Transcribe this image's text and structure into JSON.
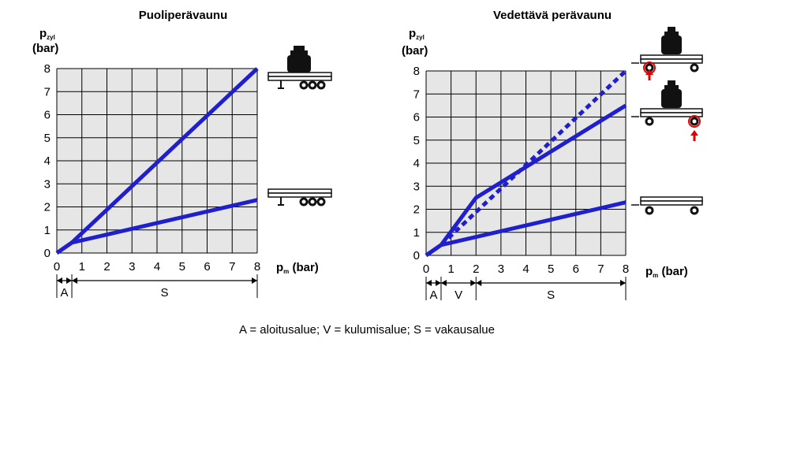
{
  "chart_data": [
    {
      "type": "line",
      "title": "Puoliperävaunu",
      "ylabel_main": "p",
      "ylabel_sub": "zyl",
      "ylabel_unit": "(bar)",
      "xlabel_main": "p",
      "xlabel_sub": "m",
      "xlabel_unit": " (bar)",
      "xlim": [
        0,
        8
      ],
      "ylim": [
        0,
        8
      ],
      "xticks": [
        "0",
        "1",
        "2",
        "3",
        "4",
        "5",
        "6",
        "7",
        "8"
      ],
      "yticks": [
        "0",
        "1",
        "2",
        "3",
        "4",
        "5",
        "6",
        "7",
        "8"
      ],
      "grid": true,
      "series": [
        {
          "x": [
            0,
            0.6,
            8
          ],
          "y": [
            0,
            0.45,
            8
          ],
          "style": "solid",
          "color": "#1f1fcc"
        },
        {
          "x": [
            0,
            0.6,
            8
          ],
          "y": [
            0,
            0.45,
            2.3
          ],
          "style": "solid",
          "color": "#1f1fcc"
        }
      ],
      "zones": [
        {
          "label": "A",
          "from": 0,
          "to": 0.6
        },
        {
          "label": "S",
          "from": 0.6,
          "to": 8
        }
      ],
      "vehicle_icons": [
        "loaded-semitrailer-icon",
        "empty-semitrailer-icon"
      ]
    },
    {
      "type": "line",
      "title": "Vedettävä perävaunu",
      "ylabel_main": "p",
      "ylabel_sub": "zyl",
      "ylabel_unit": "(bar)",
      "xlabel_main": "p",
      "xlabel_sub": "m",
      "xlabel_unit": " (bar)",
      "xlim": [
        0,
        8
      ],
      "ylim": [
        0,
        8
      ],
      "xticks": [
        "0",
        "1",
        "2",
        "3",
        "4",
        "5",
        "6",
        "7",
        "8"
      ],
      "yticks": [
        "0",
        "1",
        "2",
        "3",
        "4",
        "5",
        "6",
        "7",
        "8"
      ],
      "grid": true,
      "series": [
        {
          "x": [
            0,
            0.6,
            8
          ],
          "y": [
            0,
            0.45,
            8
          ],
          "style": "dotted",
          "color": "#1f1fcc"
        },
        {
          "x": [
            0,
            0.6,
            2,
            8
          ],
          "y": [
            0,
            0.45,
            2.5,
            6.5
          ],
          "style": "solid",
          "color": "#1f1fcc"
        },
        {
          "x": [
            0,
            0.6,
            8
          ],
          "y": [
            0,
            0.45,
            2.3
          ],
          "style": "solid",
          "color": "#1f1fcc"
        }
      ],
      "zones": [
        {
          "label": "A",
          "from": 0,
          "to": 0.6
        },
        {
          "label": "V",
          "from": 0.6,
          "to": 2
        },
        {
          "label": "S",
          "from": 2,
          "to": 8
        }
      ],
      "vehicle_icons": [
        "loaded-trailer-front-axle-icon",
        "loaded-trailer-rear-axle-icon",
        "empty-trailer-icon"
      ]
    }
  ],
  "caption": "A = aloitusalue; V = kulumisalue; S = vakausalue",
  "colors": {
    "line": "#1f1fcc",
    "plot_bg": "#e6e6e6",
    "grid": "#000000",
    "arrow": "#e00000"
  }
}
